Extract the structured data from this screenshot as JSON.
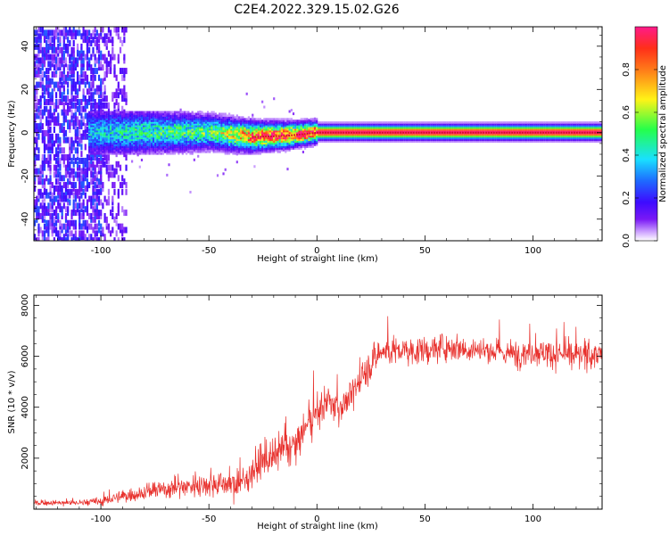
{
  "title": "C2E4.2022.329.15.02.G26",
  "colors": {
    "snr_line": "#e8302c",
    "spec_cmap": [
      "#ffffff",
      "#cfa6ff",
      "#7a19f5",
      "#3d0bff",
      "#1e6bff",
      "#19e0ff",
      "#25ff4a",
      "#fff317",
      "#ff2f19",
      "#ff1a8a"
    ],
    "trace_line": "#d0102a"
  },
  "chart_data": [
    {
      "type": "heatmap",
      "name": "spectrogram",
      "xlabel": "Height of straight line (km)",
      "ylabel": "Frequency (Hz)",
      "xlim": [
        -131,
        132
      ],
      "ylim": [
        -50,
        49
      ],
      "xticks": [
        -100,
        -50,
        0,
        50,
        100
      ],
      "xtick_labels": [
        "-100",
        "-50",
        "0",
        "50",
        "100"
      ],
      "yticks": [
        -40,
        -20,
        0,
        20,
        40
      ],
      "ytick_labels": [
        "-40",
        "-20",
        "0",
        "20",
        "40"
      ],
      "grid": false,
      "colorbar": {
        "label": "Normalized spectral amplitude",
        "range": [
          0,
          1
        ],
        "ticks": [
          0.0,
          0.2,
          0.4,
          0.6,
          0.8
        ],
        "tick_labels": [
          "0.0",
          "0.2",
          "0.4",
          "0.6",
          "0.8"
        ]
      },
      "description_series": [
        {
          "x": -105,
          "center_freq": 0,
          "peak_amp": 0.35
        },
        {
          "x": -80,
          "center_freq": 0,
          "peak_amp": 0.45
        },
        {
          "x": -50,
          "center_freq": 0,
          "peak_amp": 0.5
        },
        {
          "x": -30,
          "center_freq": -2,
          "peak_amp": 0.85
        },
        {
          "x": -15,
          "center_freq": -1.5,
          "peak_amp": 0.9
        },
        {
          "x": 0,
          "center_freq": 0,
          "peak_amp": 1.0
        },
        {
          "x": 50,
          "center_freq": 0,
          "peak_amp": 1.0
        },
        {
          "x": 100,
          "center_freq": 0,
          "peak_amp": 1.0
        },
        {
          "x": 130,
          "center_freq": 0,
          "peak_amp": 1.0
        }
      ]
    },
    {
      "type": "line",
      "name": "snr",
      "xlabel": "Height of straight line (km)",
      "ylabel": "SNR (10 * v/v)",
      "xlim": [
        -131,
        132
      ],
      "ylim": [
        0,
        8400
      ],
      "xticks": [
        -100,
        -50,
        0,
        50,
        100
      ],
      "xtick_labels": [
        "-100",
        "-50",
        "0",
        "50",
        "100"
      ],
      "yticks": [
        2000,
        4000,
        6000,
        8000
      ],
      "ytick_labels": [
        "2000",
        "4000",
        "6000",
        "8000"
      ],
      "grid": false,
      "x": [
        -131,
        -120,
        -110,
        -100,
        -90,
        -80,
        -70,
        -60,
        -50,
        -40,
        -35,
        -30,
        -25,
        -20,
        -15,
        -10,
        -5,
        0,
        5,
        10,
        15,
        20,
        25,
        30,
        40,
        50,
        60,
        70,
        80,
        90,
        100,
        110,
        120,
        132
      ],
      "values": [
        250,
        250,
        250,
        300,
        500,
        650,
        800,
        900,
        1000,
        1000,
        1000,
        1500,
        1900,
        2000,
        2400,
        2500,
        3200,
        3800,
        4200,
        4000,
        4300,
        5100,
        5700,
        6200,
        6200,
        6200,
        6400,
        6300,
        6200,
        6100,
        6200,
        6100,
        6000,
        6100
      ],
      "noise_amplitude": [
        120,
        120,
        150,
        250,
        300,
        400,
        500,
        550,
        600,
        700,
        700,
        800,
        900,
        900,
        900,
        900,
        900,
        900,
        800,
        800,
        800,
        800,
        800,
        800,
        700,
        700,
        700,
        700,
        700,
        700,
        700,
        700,
        700,
        700
      ]
    }
  ]
}
